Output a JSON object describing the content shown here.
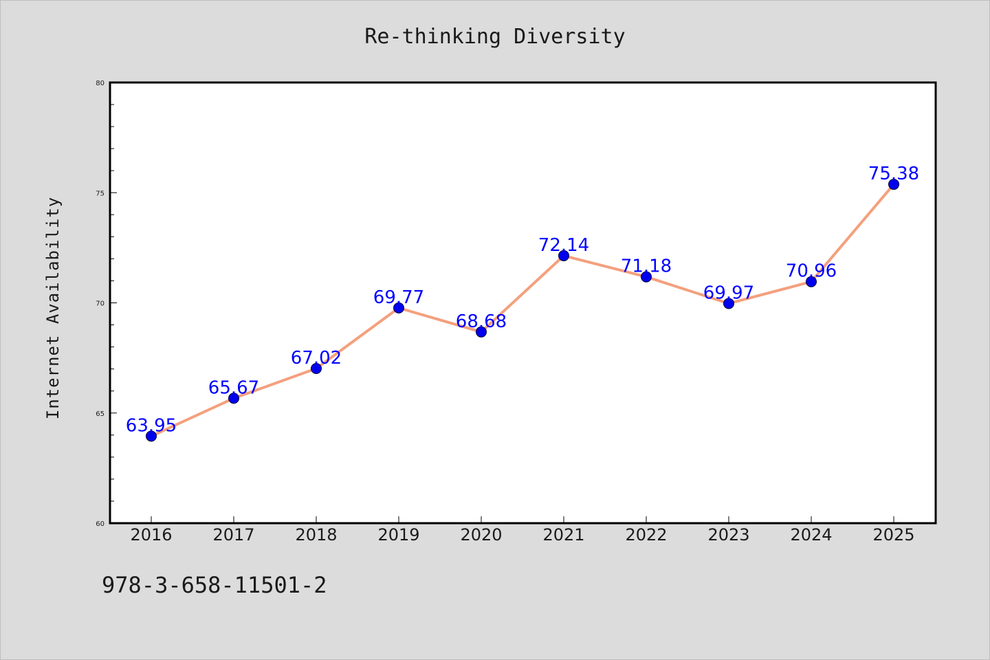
{
  "colors": {
    "background": "#dcdcdc",
    "plot_background": "#ffffff",
    "line": "#f4a07e",
    "marker": "#0000ee",
    "data_label": "#0000ff"
  },
  "footer_text": "978-3-658-11501-2",
  "chart_data": {
    "type": "line",
    "title": "Re-thinking Diversity",
    "xlabel": "",
    "ylabel": "Internet Availability",
    "categories": [
      "2016",
      "2017",
      "2018",
      "2019",
      "2020",
      "2021",
      "2022",
      "2023",
      "2024",
      "2025"
    ],
    "series": [
      {
        "values": [
          63.95,
          65.67,
          67.02,
          69.77,
          68.68,
          72.14,
          71.18,
          69.97,
          70.96,
          75.38
        ],
        "labels": [
          "63.95",
          "65.67",
          "67.02",
          "69.77",
          "68.68",
          "72.14",
          "71.18",
          "69.97",
          "70.96",
          "75.38"
        ]
      }
    ],
    "ylim": [
      60,
      80
    ],
    "yticks": [
      "60",
      "65",
      "70",
      "75",
      "80"
    ],
    "grid": false,
    "legend": "none"
  }
}
